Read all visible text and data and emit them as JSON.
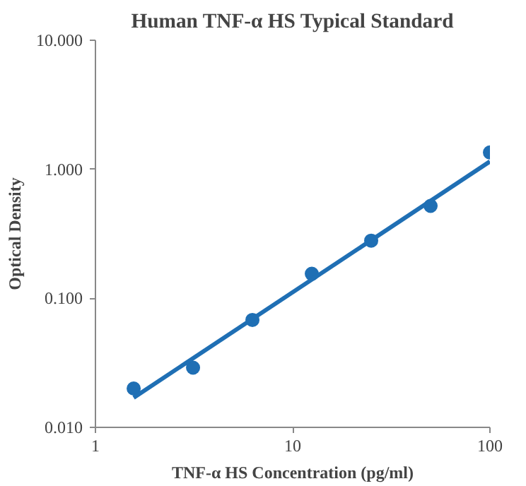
{
  "chart_data": {
    "type": "scatter",
    "title": "Human TNF-α HS Typical Standard",
    "xlabel": "TNF-α HS Concentration (pg/ml)",
    "ylabel": "Optical Density",
    "log": "xy",
    "xlim": [
      1,
      100
    ],
    "ylim": [
      0.01,
      10
    ],
    "xticks": [
      1,
      10,
      100
    ],
    "yticks": [
      {
        "value": 0.01,
        "label": "0.010"
      },
      {
        "value": 0.1,
        "label": "0.100"
      },
      {
        "value": 1,
        "label": "1.000"
      },
      {
        "value": 10,
        "label": "10.000"
      }
    ],
    "grid": false,
    "series": [
      {
        "color": "#1f6fb4",
        "marker": "circle",
        "x": [
          1.5625,
          3.125,
          6.25,
          12.5,
          25,
          50,
          100
        ],
        "values": [
          0.02,
          0.029,
          0.068,
          0.155,
          0.28,
          0.52,
          1.35
        ]
      },
      {
        "type": "line",
        "color": "#1f6fb4",
        "marker": "none",
        "line_style": "solid",
        "x": [
          1.5625,
          100
        ],
        "values": [
          0.017,
          1.15
        ]
      }
    ]
  }
}
